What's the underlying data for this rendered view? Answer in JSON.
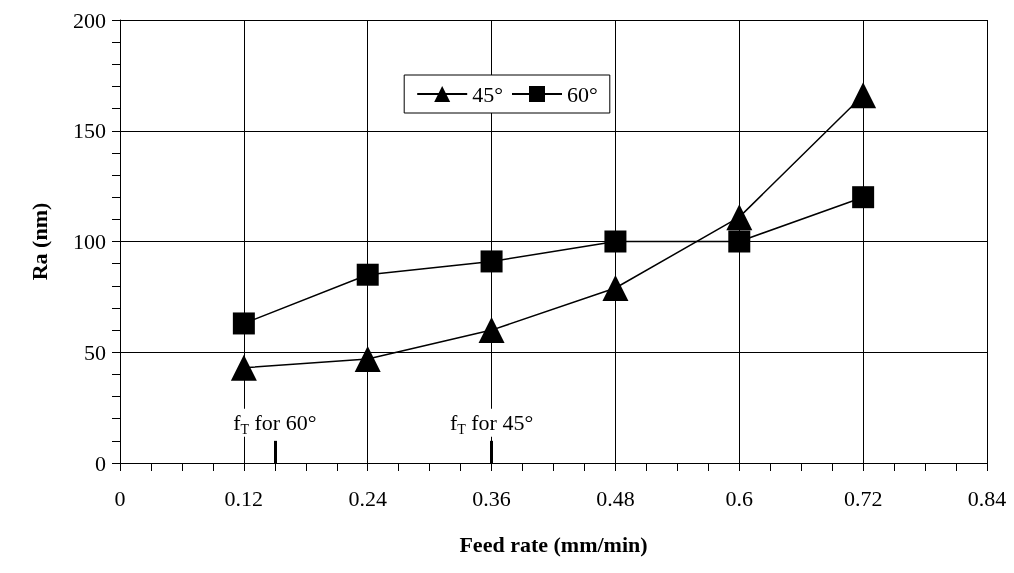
{
  "chart_data": {
    "type": "line",
    "xlabel": "Feed rate (mm/min)",
    "ylabel": "Ra (nm)",
    "x": [
      0.12,
      0.24,
      0.36,
      0.48,
      0.6,
      0.72
    ],
    "series": [
      {
        "name": "45°",
        "color": "#000000",
        "marker": "triangle",
        "values": [
          43,
          47,
          60,
          79,
          111,
          166
        ]
      },
      {
        "name": "60°",
        "color": "#000000",
        "marker": "square",
        "values": [
          63,
          85,
          91,
          100,
          100,
          120
        ]
      }
    ],
    "xlim": [
      0,
      0.84
    ],
    "xticks": [
      0,
      0.12,
      0.24,
      0.36,
      0.48,
      0.6,
      0.72,
      0.84
    ],
    "ylim": [
      0,
      200
    ],
    "yticks": [
      0,
      50,
      100,
      150,
      200
    ],
    "ref_lines": [
      {
        "axis": "x",
        "value": 0.15,
        "label": "f$_{T}$ for 60°",
        "color": "#000000"
      },
      {
        "axis": "x",
        "value": 0.36,
        "label": "f$_{T}$ for 45°",
        "color": "#000000"
      }
    ],
    "grid": true,
    "legend": "top",
    "line_style": "solid"
  }
}
